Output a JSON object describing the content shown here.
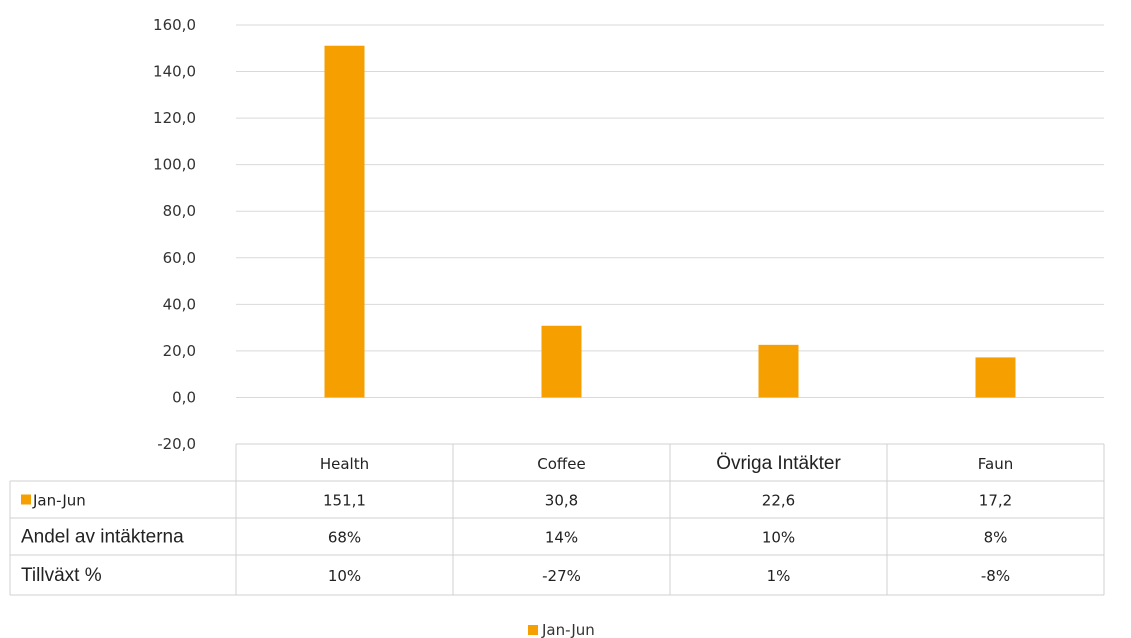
{
  "chart_data": {
    "type": "bar",
    "categories": [
      "Health",
      "Coffee",
      "Övriga Intäkter",
      "Faun"
    ],
    "series": [
      {
        "name": "Jan-Jun",
        "values": [
          151.1,
          30.8,
          22.6,
          17.2
        ],
        "color": "#F5A000"
      }
    ],
    "ylim": [
      -20,
      160
    ],
    "ytick_step": 20,
    "ytick_labels": [
      "-20,0",
      "0,0",
      "20,0",
      "40,0",
      "60,0",
      "80,0",
      "100,0",
      "120,0",
      "140,0",
      "160,0"
    ],
    "grid": true,
    "legend_position": "bottom",
    "title": "",
    "xlabel": "",
    "ylabel": "",
    "data_table": {
      "rows": [
        {
          "label": "Jan-Jun",
          "legend_key": true,
          "cells": [
            "151,1",
            "30,8",
            "22,6",
            "17,2"
          ]
        },
        {
          "label": "Andel av intäkterna",
          "legend_key": false,
          "cells": [
            "68%",
            "14%",
            "10%",
            "8%"
          ]
        },
        {
          "label": "Tillväxt %",
          "legend_key": false,
          "cells": [
            "10%",
            "-27%",
            "1%",
            "-8%"
          ]
        }
      ]
    },
    "legend": {
      "label": "Jan-Jun"
    }
  }
}
